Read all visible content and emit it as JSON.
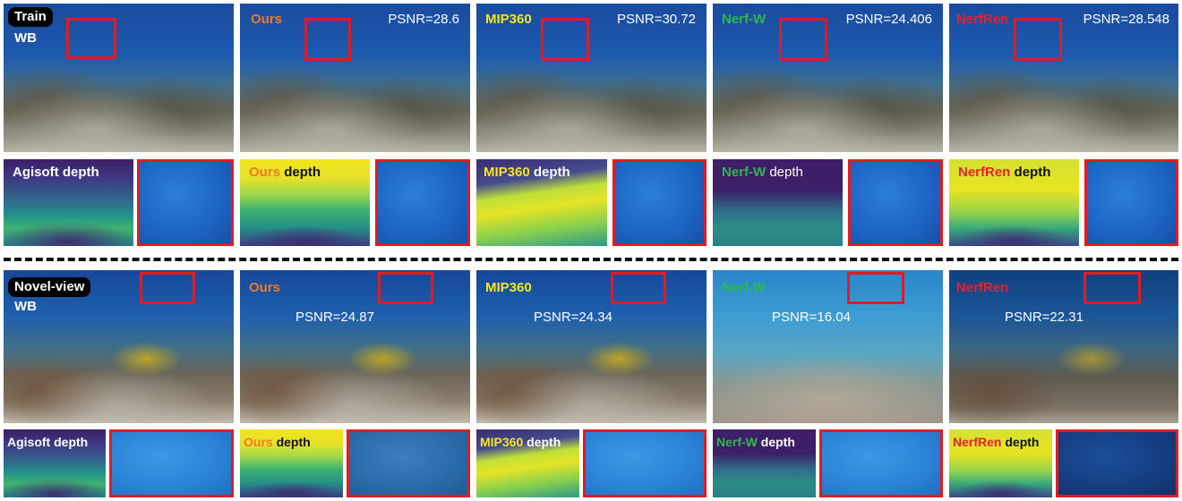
{
  "rows": {
    "train_tag": "Train",
    "novel_tag": "Novel-view",
    "wb_label": "WB"
  },
  "methods": {
    "ours": "Ours",
    "mip360": "MIP360",
    "nerfw": "Nerf-W",
    "nerfren": "NerfRen",
    "agisoft": "Agisoft"
  },
  "depth_word": "depth",
  "agisoft_depth": "Agisoft depth",
  "psnr_train": {
    "ours": "PSNR=28.6",
    "mip360": "PSNR=30.72",
    "nerfw": "PSNR=24.406",
    "nerfren": "PSNR=28.548"
  },
  "psnr_novel": {
    "ours": "PSNR=24.87",
    "mip360": "PSNR=24.34",
    "nerfw": "PSNR=16.04",
    "nerfren": "PSNR=22.31"
  },
  "colors": {
    "ours": "#f07a22",
    "mip360": "#f5e61e",
    "nerfw": "#2fb84a",
    "nerfren": "#e8202a",
    "red_box": "#e21b22"
  }
}
